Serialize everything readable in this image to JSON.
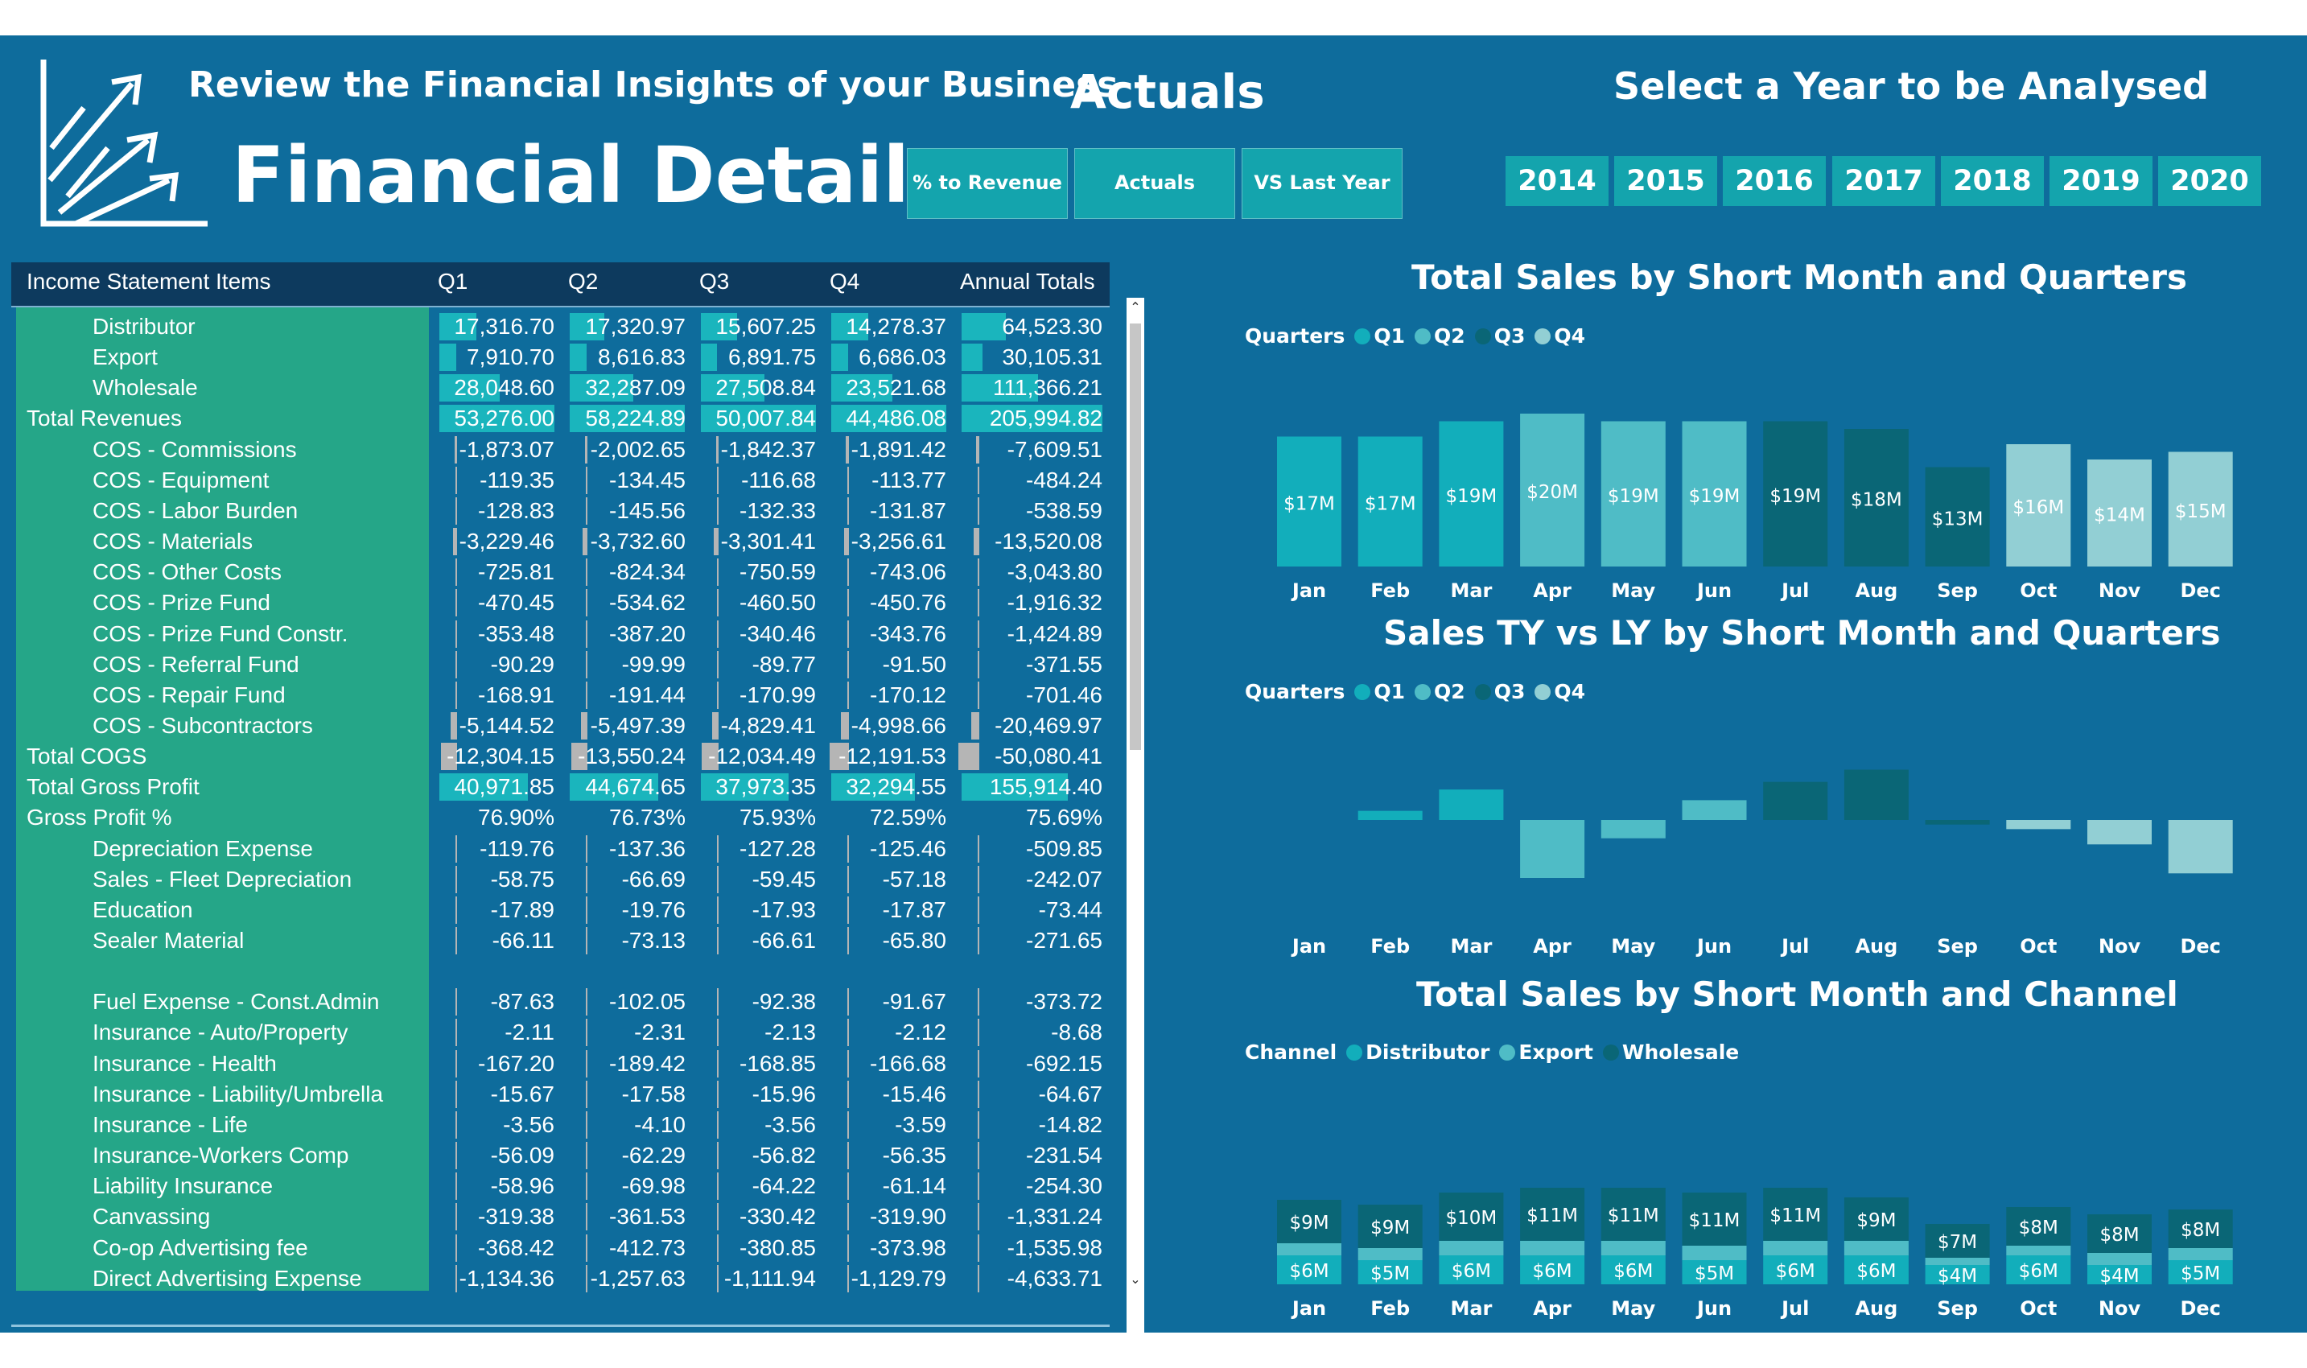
{
  "header": {
    "subtitle": "Review the Financial Insights of your Business",
    "title": "Financial Details",
    "view_label": "Actuals",
    "year_prompt": "Select a Year to be Analysed"
  },
  "view_buttons": [
    "% to Revenue",
    "Actuals",
    "VS Last Year"
  ],
  "year_buttons": [
    "2014",
    "2015",
    "2016",
    "2017",
    "2018",
    "2019",
    "2020"
  ],
  "table": {
    "columns": [
      "Income Statement Items",
      "Q1",
      "Q2",
      "Q3",
      "Q4",
      "Annual Totals"
    ],
    "rows": [
      {
        "label": "Distributor",
        "indent": true,
        "values": [
          "17,316.70",
          "17,320.97",
          "15,607.25",
          "14,278.37",
          "64,523.30"
        ]
      },
      {
        "label": "Export",
        "indent": true,
        "values": [
          "7,910.70",
          "8,616.83",
          "6,891.75",
          "6,686.03",
          "30,105.31"
        ]
      },
      {
        "label": "Wholesale",
        "indent": true,
        "values": [
          "28,048.60",
          "32,287.09",
          "27,508.84",
          "23,521.68",
          "111,366.21"
        ]
      },
      {
        "label": "Total Revenues",
        "indent": false,
        "values": [
          "53,276.00",
          "58,224.89",
          "50,007.84",
          "44,486.08",
          "205,994.82"
        ]
      },
      {
        "label": "COS - Commissions",
        "indent": true,
        "values": [
          "-1,873.07",
          "-2,002.65",
          "-1,842.37",
          "-1,891.42",
          "-7,609.51"
        ]
      },
      {
        "label": "COS - Equipment",
        "indent": true,
        "values": [
          "-119.35",
          "-134.45",
          "-116.68",
          "-113.77",
          "-484.24"
        ]
      },
      {
        "label": "COS - Labor Burden",
        "indent": true,
        "values": [
          "-128.83",
          "-145.56",
          "-132.33",
          "-131.87",
          "-538.59"
        ]
      },
      {
        "label": "COS - Materials",
        "indent": true,
        "values": [
          "-3,229.46",
          "-3,732.60",
          "-3,301.41",
          "-3,256.61",
          "-13,520.08"
        ]
      },
      {
        "label": "COS - Other Costs",
        "indent": true,
        "values": [
          "-725.81",
          "-824.34",
          "-750.59",
          "-743.06",
          "-3,043.80"
        ]
      },
      {
        "label": "COS - Prize Fund",
        "indent": true,
        "values": [
          "-470.45",
          "-534.62",
          "-460.50",
          "-450.76",
          "-1,916.32"
        ]
      },
      {
        "label": "COS - Prize Fund Constr.",
        "indent": true,
        "values": [
          "-353.48",
          "-387.20",
          "-340.46",
          "-343.76",
          "-1,424.89"
        ]
      },
      {
        "label": "COS - Referral Fund",
        "indent": true,
        "values": [
          "-90.29",
          "-99.99",
          "-89.77",
          "-91.50",
          "-371.55"
        ]
      },
      {
        "label": "COS - Repair Fund",
        "indent": true,
        "values": [
          "-168.91",
          "-191.44",
          "-170.99",
          "-170.12",
          "-701.46"
        ]
      },
      {
        "label": "COS - Subcontractors",
        "indent": true,
        "values": [
          "-5,144.52",
          "-5,497.39",
          "-4,829.41",
          "-4,998.66",
          "-20,469.97"
        ]
      },
      {
        "label": "Total COGS",
        "indent": false,
        "values": [
          "-12,304.15",
          "-13,550.24",
          "-12,034.49",
          "-12,191.53",
          "-50,080.41"
        ]
      },
      {
        "label": "Total Gross Profit",
        "indent": false,
        "values": [
          "40,971.85",
          "44,674.65",
          "37,973.35",
          "32,294.55",
          "155,914.40"
        ]
      },
      {
        "label": "Gross Profit %",
        "indent": false,
        "values": [
          "76.90%",
          "76.73%",
          "75.93%",
          "72.59%",
          "75.69%"
        ]
      },
      {
        "label": "Depreciation Expense",
        "indent": true,
        "values": [
          "-119.76",
          "-137.36",
          "-127.28",
          "-125.46",
          "-509.85"
        ]
      },
      {
        "label": "Sales - Fleet Depreciation",
        "indent": true,
        "values": [
          "-58.75",
          "-66.69",
          "-59.45",
          "-57.18",
          "-242.07"
        ]
      },
      {
        "label": "Education",
        "indent": true,
        "values": [
          "-17.89",
          "-19.76",
          "-17.93",
          "-17.87",
          "-73.44"
        ]
      },
      {
        "label": "Sealer Material",
        "indent": true,
        "values": [
          "-66.11",
          "-73.13",
          "-66.61",
          "-65.80",
          "-271.65"
        ]
      },
      {
        "label": "",
        "indent": true,
        "values": [
          "",
          "",
          "",
          "",
          ""
        ]
      },
      {
        "label": "Fuel Expense - Const.Admin",
        "indent": true,
        "values": [
          "-87.63",
          "-102.05",
          "-92.38",
          "-91.67",
          "-373.72"
        ]
      },
      {
        "label": "Insurance - Auto/Property",
        "indent": true,
        "values": [
          "-2.11",
          "-2.31",
          "-2.13",
          "-2.12",
          "-8.68"
        ]
      },
      {
        "label": "Insurance - Health",
        "indent": true,
        "values": [
          "-167.20",
          "-189.42",
          "-168.85",
          "-166.68",
          "-692.15"
        ]
      },
      {
        "label": "Insurance - Liability/Umbrella",
        "indent": true,
        "values": [
          "-15.67",
          "-17.58",
          "-15.96",
          "-15.46",
          "-64.67"
        ]
      },
      {
        "label": "Insurance - Life",
        "indent": true,
        "values": [
          "-3.56",
          "-4.10",
          "-3.56",
          "-3.59",
          "-14.82"
        ]
      },
      {
        "label": "Insurance-Workers Comp",
        "indent": true,
        "values": [
          "-56.09",
          "-62.29",
          "-56.82",
          "-56.35",
          "-231.54"
        ]
      },
      {
        "label": "Liability Insurance",
        "indent": true,
        "values": [
          "-58.96",
          "-69.98",
          "-64.22",
          "-61.14",
          "-254.30"
        ]
      },
      {
        "label": "Canvassing",
        "indent": true,
        "values": [
          "-319.38",
          "-361.53",
          "-330.42",
          "-319.90",
          "-1,331.24"
        ]
      },
      {
        "label": "Co-op Advertising fee",
        "indent": true,
        "values": [
          "-368.42",
          "-412.73",
          "-380.85",
          "-373.98",
          "-1,535.98"
        ]
      },
      {
        "label": "Direct Advertising Expense",
        "indent": true,
        "values": [
          "-1,134.36",
          "-1,257.63",
          "-1,111.94",
          "-1,129.79",
          "-4,633.71"
        ]
      }
    ]
  },
  "chart_data": [
    {
      "type": "bar",
      "title": "Total Sales by Short Month and Quarters",
      "legend_title": "Quarters",
      "legend": [
        "Q1",
        "Q2",
        "Q3",
        "Q4"
      ],
      "colors": {
        "Q1": "#12aebb",
        "Q2": "#4fbcc6",
        "Q3": "#0a6676",
        "Q4": "#92cfd4"
      },
      "categories": [
        "Jan",
        "Feb",
        "Mar",
        "Apr",
        "May",
        "Jun",
        "Jul",
        "Aug",
        "Sep",
        "Oct",
        "Nov",
        "Dec"
      ],
      "quarters": [
        "Q1",
        "Q1",
        "Q1",
        "Q2",
        "Q2",
        "Q2",
        "Q3",
        "Q3",
        "Q3",
        "Q4",
        "Q4",
        "Q4"
      ],
      "values": [
        17,
        17,
        19,
        20,
        19,
        19,
        19,
        18,
        13,
        16,
        14,
        15
      ],
      "labels": [
        "$17M",
        "$17M",
        "$19M",
        "$20M",
        "$19M",
        "$19M",
        "$19M",
        "$18M",
        "$13M",
        "$16M",
        "$14M",
        "$15M"
      ],
      "unit": "M"
    },
    {
      "type": "bar",
      "title": "Sales TY vs LY by Short Month and Quarters",
      "legend_title": "Quarters",
      "legend": [
        "Q1",
        "Q2",
        "Q3",
        "Q4"
      ],
      "colors": {
        "Q1": "#12aebb",
        "Q2": "#4fbcc6",
        "Q3": "#0a6676",
        "Q4": "#92cfd4"
      },
      "categories": [
        "Jan",
        "Feb",
        "Mar",
        "Apr",
        "May",
        "Jun",
        "Jul",
        "Aug",
        "Sep",
        "Oct",
        "Nov",
        "Dec"
      ],
      "quarters": [
        "Q1",
        "Q1",
        "Q1",
        "Q2",
        "Q2",
        "Q2",
        "Q3",
        "Q3",
        "Q3",
        "Q4",
        "Q4",
        "Q4"
      ],
      "values": [
        0,
        0.6,
        2.0,
        -3.8,
        -1.2,
        1.3,
        2.5,
        3.3,
        -0.3,
        -0.6,
        -1.6,
        -3.5
      ]
    },
    {
      "type": "bar",
      "stacked": true,
      "title": "Total Sales by Short Month and Channel",
      "legend_title": "Channel",
      "categories": [
        "Jan",
        "Feb",
        "Mar",
        "Apr",
        "May",
        "Jun",
        "Jul",
        "Aug",
        "Sep",
        "Oct",
        "Nov",
        "Dec"
      ],
      "series": [
        {
          "name": "Distributor",
          "color": "#12aebb",
          "values": [
            6,
            5,
            6,
            6,
            6,
            5,
            6,
            6,
            4,
            6,
            4,
            5
          ],
          "labels": [
            "$6M",
            "$5M",
            "$6M",
            "$6M",
            "$6M",
            "$5M",
            "$6M",
            "$6M",
            "$4M",
            "$6M",
            "$4M",
            "$5M"
          ]
        },
        {
          "name": "Export",
          "color": "#4fbcc6",
          "values": [
            2.5,
            2.5,
            3,
            3,
            3,
            3,
            3,
            3,
            1.5,
            2,
            2.5,
            2.5
          ],
          "labels": []
        },
        {
          "name": "Wholesale",
          "color": "#0a6676",
          "values": [
            9,
            9,
            10,
            11,
            11,
            11,
            11,
            9,
            7,
            8,
            8,
            8
          ],
          "labels": [
            "$9M",
            "$9M",
            "$10M",
            "$11M",
            "$11M",
            "$11M",
            "$11M",
            "$9M",
            "$7M",
            "$8M",
            "$8M",
            "$8M"
          ]
        }
      ]
    }
  ]
}
